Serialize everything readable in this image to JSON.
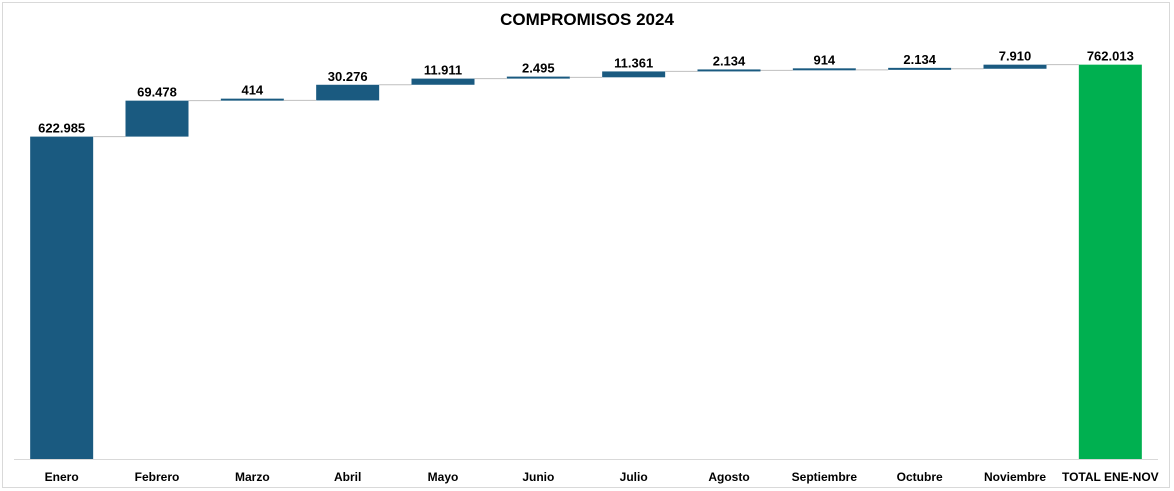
{
  "chart_data": {
    "type": "bar",
    "subtype": "waterfall",
    "title": "COMPROMISOS 2024",
    "categories": [
      "Enero",
      "Febrero",
      "Marzo",
      "Abril",
      "Mayo",
      "Junio",
      "Julio",
      "Agosto",
      "Septiembre",
      "Octubre",
      "Noviembre",
      "TOTAL ENE-NOV"
    ],
    "values": [
      622985,
      69478,
      414,
      30276,
      11911,
      2495,
      11361,
      2134,
      914,
      2134,
      7910,
      762013
    ],
    "value_labels": [
      "622.985",
      "69.478",
      "414",
      "30.276",
      "11.911",
      "2.495",
      "11.361",
      "2.134",
      "914",
      "2.134",
      "7.910",
      "762.013"
    ],
    "total_index": 11,
    "colors": {
      "increase": "#1a5a80",
      "total": "#00b050",
      "connector": "#bfbfbf",
      "axis": "#d9d9d9"
    },
    "ylim": [
      0,
      800000
    ],
    "grid": false,
    "legend": "none",
    "xlabel": "",
    "ylabel": ""
  }
}
